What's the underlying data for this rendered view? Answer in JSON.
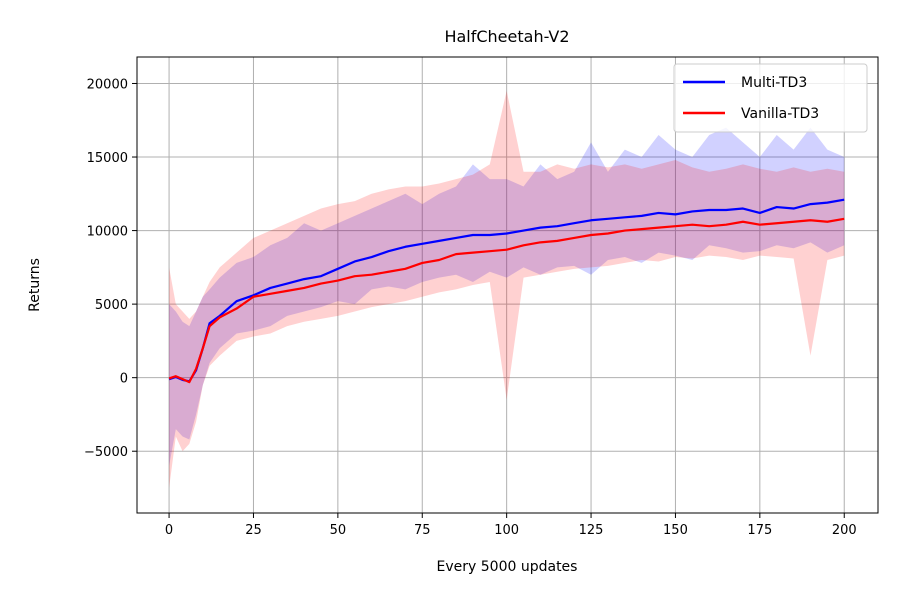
{
  "chart_data": {
    "type": "line",
    "title": "HalfCheetah-V2",
    "xlabel": "Every 5000 updates",
    "ylabel": "Returns",
    "xlim": [
      -9.5,
      210
    ],
    "ylim": [
      -9200,
      21800
    ],
    "xticks": [
      0,
      25,
      50,
      75,
      100,
      125,
      150,
      175,
      200
    ],
    "xtick_labels": [
      "0",
      "25",
      "50",
      "75",
      "100",
      "125",
      "150",
      "175",
      "200"
    ],
    "yticks": [
      -5000,
      0,
      5000,
      10000,
      15000,
      20000
    ],
    "ytick_labels": [
      "−5000",
      "0",
      "5000",
      "10000",
      "15000",
      "20000"
    ],
    "grid": true,
    "legend_position": "top-right",
    "series": [
      {
        "name": "Multi-TD3",
        "color": "#0000ff",
        "band_color": "#0000ff",
        "x": [
          0,
          2,
          4,
          6,
          8,
          10,
          12,
          15,
          20,
          25,
          30,
          35,
          40,
          45,
          50,
          55,
          60,
          65,
          70,
          75,
          80,
          85,
          90,
          95,
          100,
          105,
          110,
          115,
          120,
          125,
          130,
          135,
          140,
          145,
          150,
          155,
          160,
          165,
          170,
          175,
          180,
          185,
          190,
          195,
          200
        ],
        "values": [
          -100,
          50,
          -150,
          -250,
          500,
          2000,
          3700,
          4200,
          5200,
          5600,
          6100,
          6400,
          6700,
          6900,
          7400,
          7900,
          8200,
          8600,
          8900,
          9100,
          9300,
          9500,
          9700,
          9700,
          9800,
          10000,
          10200,
          10300,
          10500,
          10700,
          10800,
          10900,
          11000,
          11200,
          11100,
          11300,
          11400,
          11400,
          11500,
          11200,
          11600,
          11500,
          11800,
          11900,
          12100
        ],
        "band_lower": [
          -6000,
          -3500,
          -4000,
          -4200,
          -2500,
          -500,
          1000,
          2000,
          3000,
          3200,
          3500,
          4200,
          4500,
          4800,
          5200,
          5000,
          6000,
          6200,
          6000,
          6500,
          6800,
          7000,
          6500,
          7200,
          6800,
          7500,
          7000,
          7500,
          7600,
          7000,
          8000,
          8200,
          7800,
          8500,
          8300,
          8000,
          9000,
          8800,
          8500,
          8600,
          9000,
          8800,
          9200,
          8500,
          9000
        ],
        "band_upper": [
          5000,
          4500,
          3800,
          3500,
          4500,
          5500,
          6000,
          6800,
          7800,
          8200,
          9000,
          9500,
          10500,
          10000,
          10500,
          11000,
          11500,
          12000,
          12500,
          11800,
          12500,
          13000,
          14500,
          13500,
          13500,
          13000,
          14500,
          13500,
          14000,
          16000,
          14000,
          15500,
          15000,
          16500,
          15500,
          15000,
          16500,
          17000,
          16000,
          15000,
          16500,
          15500,
          17000,
          15500,
          15000
        ]
      },
      {
        "name": "Vanilla-TD3",
        "color": "#ff0000",
        "band_color": "#ff0000",
        "x": [
          0,
          2,
          4,
          6,
          8,
          10,
          12,
          15,
          20,
          25,
          30,
          35,
          40,
          45,
          50,
          55,
          60,
          65,
          70,
          75,
          80,
          85,
          90,
          95,
          100,
          105,
          110,
          115,
          120,
          125,
          130,
          135,
          140,
          145,
          150,
          155,
          160,
          165,
          170,
          175,
          180,
          185,
          190,
          195,
          200
        ],
        "values": [
          -50,
          100,
          -100,
          -300,
          600,
          2000,
          3500,
          4100,
          4700,
          5500,
          5700,
          5900,
          6100,
          6400,
          6600,
          6900,
          7000,
          7200,
          7400,
          7800,
          8000,
          8400,
          8500,
          8600,
          8700,
          9000,
          9200,
          9300,
          9500,
          9700,
          9800,
          10000,
          10100,
          10200,
          10300,
          10400,
          10300,
          10400,
          10600,
          10400,
          10500,
          10600,
          10700,
          10600,
          10800
        ],
        "band_lower": [
          -7500,
          -4000,
          -5000,
          -4500,
          -3000,
          -500,
          800,
          1500,
          2500,
          2800,
          3000,
          3500,
          3800,
          4000,
          4200,
          4500,
          4800,
          5000,
          5200,
          5500,
          5800,
          6000,
          6300,
          6500,
          -1500,
          6800,
          7000,
          7200,
          7400,
          7500,
          7600,
          7800,
          8000,
          7900,
          8200,
          8100,
          8300,
          8200,
          8000,
          8300,
          8200,
          8100,
          1500,
          8000,
          8300
        ],
        "band_upper": [
          7500,
          5000,
          4500,
          4000,
          4500,
          5500,
          6500,
          7500,
          8500,
          9500,
          10000,
          10500,
          11000,
          11500,
          11800,
          12000,
          12500,
          12800,
          13000,
          13000,
          13200,
          13500,
          13800,
          14500,
          19500,
          14000,
          14000,
          14500,
          14200,
          14500,
          14300,
          14500,
          14200,
          14500,
          14800,
          14300,
          14000,
          14200,
          14500,
          14200,
          14000,
          14300,
          14000,
          14200,
          14000
        ]
      }
    ]
  }
}
